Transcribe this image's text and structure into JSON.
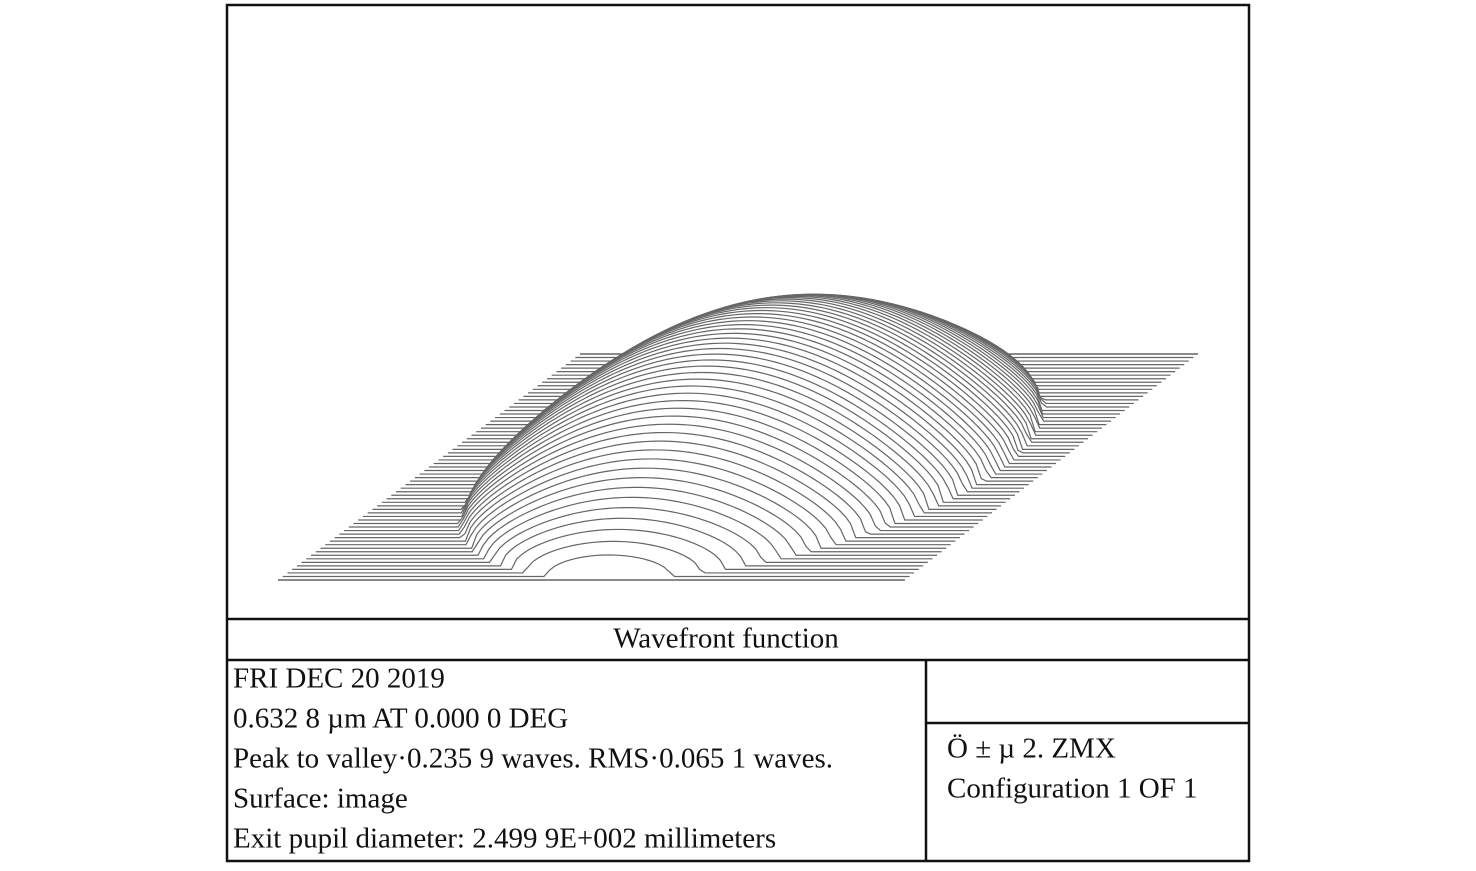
{
  "plot": {
    "title": "Wavefront function"
  },
  "info": {
    "lines": [
      "FRI DEC 20 2019",
      "0.632 8 µm AT 0.000 0 DEG",
      "Peak to valley·0.235 9 waves. RMS·0.065 1 waves.",
      "Surface: image",
      "Exit pupil diameter: 2.499 9E+002 millimeters"
    ]
  },
  "file": {
    "lines": [
      "Ö ± µ 2. ZMX",
      "Configuration 1 OF 1"
    ]
  }
}
